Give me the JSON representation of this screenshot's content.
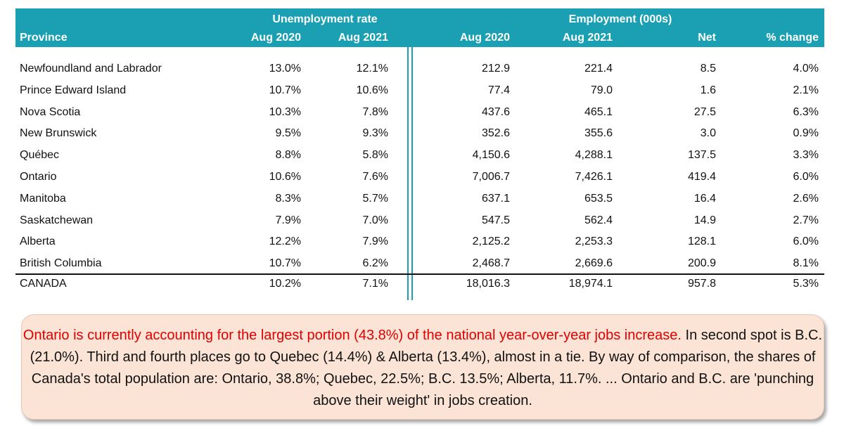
{
  "header": {
    "group_unemployment": "Unemployment rate",
    "group_employment": "Employment (000s)",
    "columns": [
      "Province",
      "Aug 2020",
      "Aug 2021",
      "Aug 2020",
      "Aug 2021",
      "Net",
      "% change"
    ]
  },
  "rows": [
    {
      "province": "Newfoundland and Labrador",
      "ur_2020": "13.0%",
      "ur_2021": "12.1%",
      "emp_2020": "212.9",
      "emp_2021": "221.4",
      "net": "8.5",
      "pct": "4.0%"
    },
    {
      "province": "Prince Edward Island",
      "ur_2020": "10.7%",
      "ur_2021": "10.6%",
      "emp_2020": "77.4",
      "emp_2021": "79.0",
      "net": "1.6",
      "pct": "2.1%"
    },
    {
      "province": "Nova Scotia",
      "ur_2020": "10.3%",
      "ur_2021": "7.8%",
      "emp_2020": "437.6",
      "emp_2021": "465.1",
      "net": "27.5",
      "pct": "6.3%"
    },
    {
      "province": "New Brunswick",
      "ur_2020": "9.5%",
      "ur_2021": "9.3%",
      "emp_2020": "352.6",
      "emp_2021": "355.6",
      "net": "3.0",
      "pct": "0.9%"
    },
    {
      "province": "Québec",
      "ur_2020": "8.8%",
      "ur_2021": "5.8%",
      "emp_2020": "4,150.6",
      "emp_2021": "4,288.1",
      "net": "137.5",
      "pct": "3.3%"
    },
    {
      "province": "Ontario",
      "ur_2020": "10.6%",
      "ur_2021": "7.6%",
      "emp_2020": "7,006.7",
      "emp_2021": "7,426.1",
      "net": "419.4",
      "pct": "6.0%"
    },
    {
      "province": "Manitoba",
      "ur_2020": "8.3%",
      "ur_2021": "5.7%",
      "emp_2020": "637.1",
      "emp_2021": "653.5",
      "net": "16.4",
      "pct": "2.6%"
    },
    {
      "province": "Saskatchewan",
      "ur_2020": "7.9%",
      "ur_2021": "7.0%",
      "emp_2020": "547.5",
      "emp_2021": "562.4",
      "net": "14.9",
      "pct": "2.7%"
    },
    {
      "province": "Alberta",
      "ur_2020": "12.2%",
      "ur_2021": "7.9%",
      "emp_2020": "2,125.2",
      "emp_2021": "2,253.3",
      "net": "128.1",
      "pct": "6.0%"
    },
    {
      "province": "British Columbia",
      "ur_2020": "10.7%",
      "ur_2021": "6.2%",
      "emp_2020": "2,468.7",
      "emp_2021": "2,669.6",
      "net": "200.9",
      "pct": "8.1%"
    }
  ],
  "total": {
    "province": "CANADA",
    "ur_2020": "10.2%",
    "ur_2021": "7.1%",
    "emp_2020": "18,016.3",
    "emp_2021": "18,974.1",
    "net": "957.8",
    "pct": "5.3%"
  },
  "callout": {
    "highlight": "Ontario is currently accounting for the largest portion (43.8%) of the national year-over-year jobs increase.",
    "body": "In second spot is B.C. (21.0%). Third and fourth places go to Quebec (14.4%) & Alberta (13.4%), almost in a tie. By way of comparison, the shares of Canada's total population are: Ontario, 38.8%; Quebec, 22.5%; B.C. 13.5%; Alberta, 11.7%. ... Ontario and B.C. are 'punching above their weight' in jobs creation."
  },
  "colors": {
    "header_bg": "#1aa0b2",
    "callout_bg": "#fbe4d6",
    "highlight": "#e00000"
  }
}
